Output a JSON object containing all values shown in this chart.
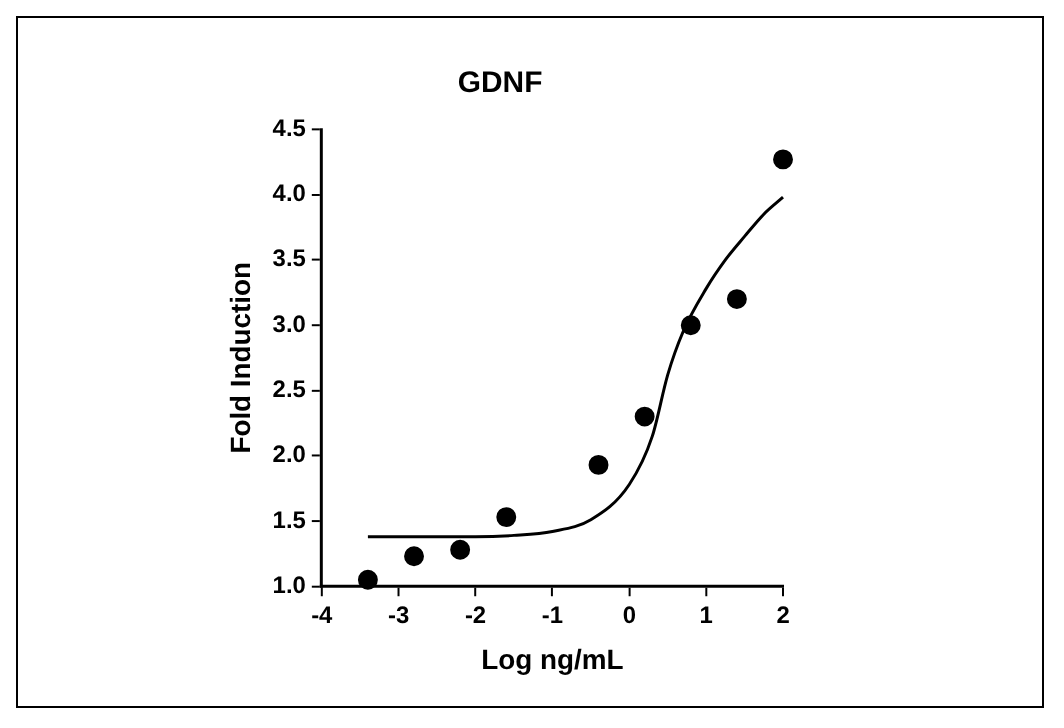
{
  "chart_data": {
    "type": "scatter",
    "title": "GDNF",
    "xlabel": "Log ng/mL",
    "ylabel": "Fold Induction",
    "xlim": [
      -4,
      2
    ],
    "xticks": [
      -4,
      -3,
      -2,
      -1,
      0,
      1,
      2
    ],
    "ylim": [
      1.0,
      4.5
    ],
    "yticks": [
      {
        "value": 1.0,
        "label": "1.0"
      },
      {
        "value": 1.5,
        "label": "1.5"
      },
      {
        "value": 2.0,
        "label": "2.0"
      },
      {
        "value": 2.5,
        "label": "2.5"
      },
      {
        "value": 3.0,
        "label": "3.0"
      },
      {
        "value": 3.5,
        "label": "3.5"
      },
      {
        "value": 4.0,
        "label": "4.0"
      },
      {
        "value": 4.5,
        "label": "4.5"
      }
    ],
    "grid": false,
    "legend": false,
    "series": [
      {
        "color": "#000000",
        "marker": "circle",
        "x": [
          -3.4,
          -2.8,
          -2.2,
          -1.6,
          -0.4,
          0.2,
          0.8,
          1.4,
          2.0
        ],
        "values": [
          1.05,
          1.23,
          1.28,
          1.53,
          1.93,
          2.3,
          3.0,
          3.2,
          4.27
        ]
      },
      {
        "type": "line",
        "color": "#000000",
        "marker": "none",
        "line_style": "solid",
        "x": [
          -3.4,
          -2.5,
          -2,
          -1.5,
          -1,
          -0.5,
          0,
          0.3,
          0.5,
          0.7,
          1,
          1.25,
          1.5,
          1.75,
          2
        ],
        "values": [
          1.38,
          1.38,
          1.38,
          1.39,
          1.42,
          1.51,
          1.78,
          2.15,
          2.62,
          2.95,
          3.28,
          3.5,
          3.68,
          3.85,
          3.98
        ]
      }
    ]
  }
}
